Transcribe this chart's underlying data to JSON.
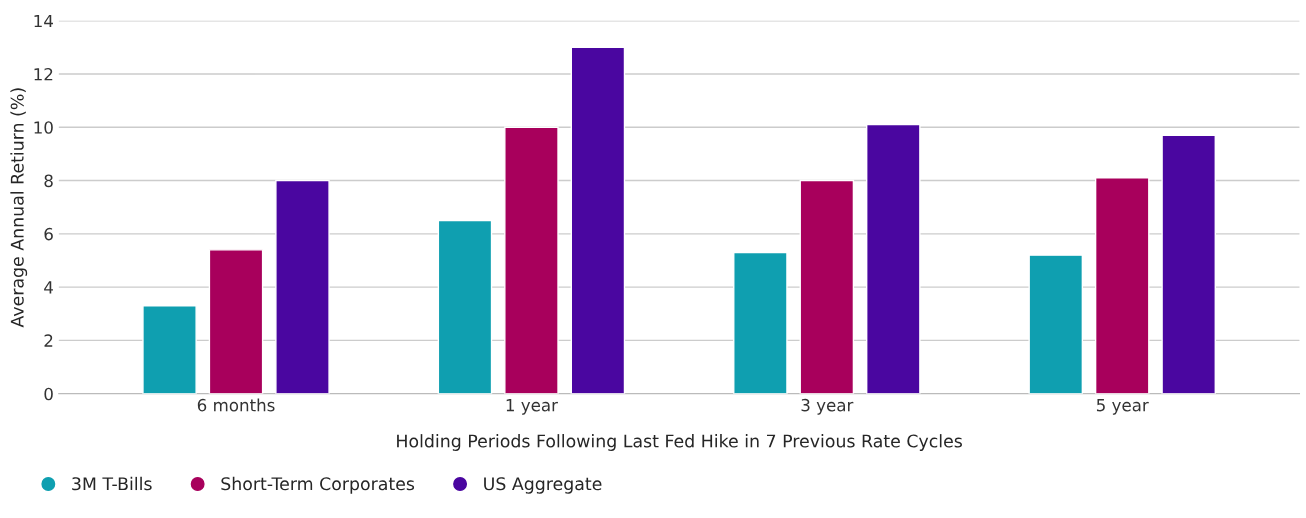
{
  "chart_data": {
    "type": "bar",
    "xlabel": "Holding Periods Following Last Fed Hike in 7 Previous Rate Cycles",
    "ylabel": "Average Annual Retiurn (%)",
    "categories": [
      "6 months",
      "1 year",
      "3 year",
      "5 year"
    ],
    "series": [
      {
        "name": "3M T-Bills",
        "color": "#0f9fb0",
        "values": [
          3.3,
          6.5,
          5.3,
          5.2
        ]
      },
      {
        "name": "Short-Term Corporates",
        "color": "#a8005c",
        "values": [
          5.4,
          10.0,
          8.0,
          8.1
        ]
      },
      {
        "name": "US Aggregate",
        "color": "#4a06a0",
        "values": [
          8.0,
          13.0,
          10.1,
          9.7
        ]
      }
    ],
    "ylim": [
      0,
      14
    ],
    "yticks": [
      0,
      2,
      4,
      6,
      8,
      10,
      12,
      14
    ],
    "grid": "y",
    "legend": "bottom left"
  }
}
